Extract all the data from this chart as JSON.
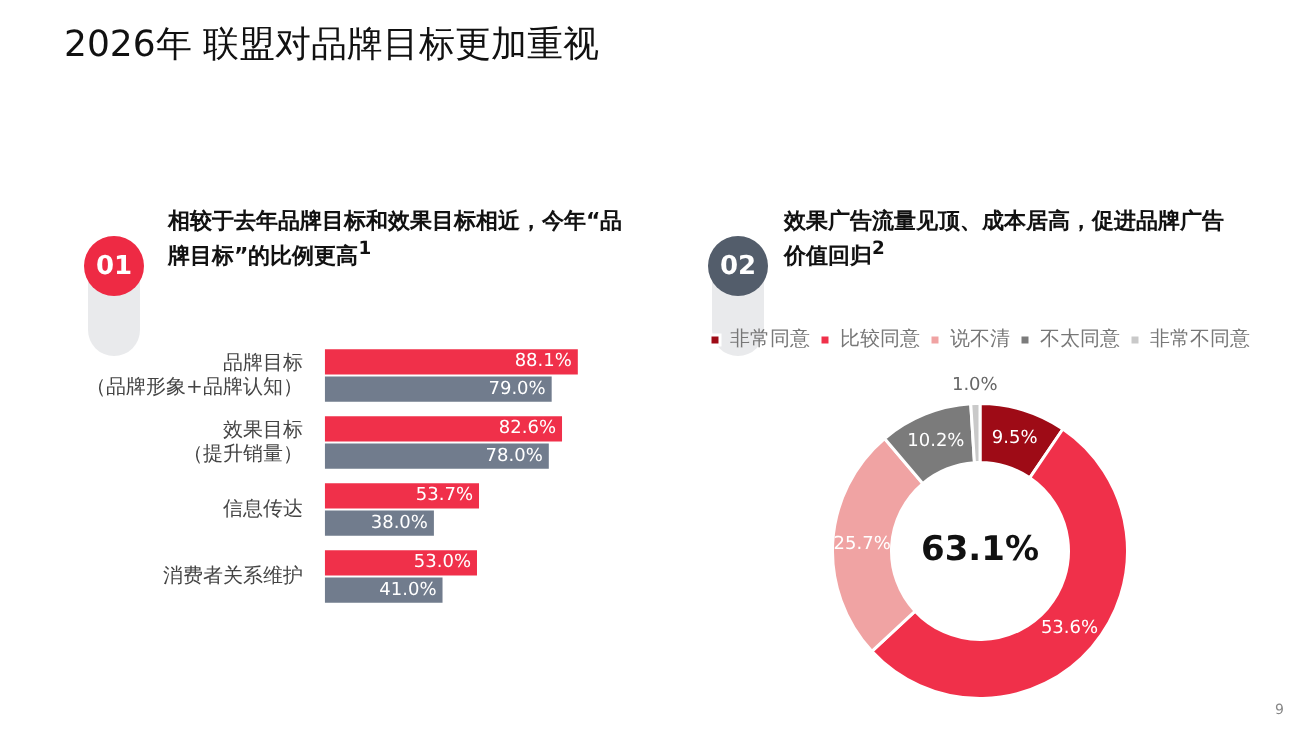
{
  "chart_data": [
    {
      "type": "bar",
      "title": "2026年 联盟对品牌目标更加重视",
      "subtitle": "相较于去年品牌目标和效果目标相近，今年“品牌目标”的比例更高$^{1}$",
      "orientation": "horizontal",
      "categories": [
        "品牌目标（品牌形象+品牌认知）",
        "效果目标（提升销量）",
        "信息传达",
        "消费者关系维护"
      ],
      "series": [
        {
          "color": "#f0304a",
          "values": [
            88.1,
            82.6,
            53.7,
            53.0
          ],
          "value_labels": [
            "88.1%",
            "82.6%",
            "53.7%",
            "53.0%"
          ]
        },
        {
          "color": "#717c8d",
          "values": [
            79.0,
            78.0,
            38.0,
            41.0
          ],
          "value_labels": [
            "79.0%",
            "78.0%",
            "38.0%",
            "41.0%"
          ]
        }
      ],
      "annotations": [
        "01"
      ]
    },
    {
      "type": "donut",
      "title": "效果广告流量见顶、成本居高，促进品牌广告价值回归$^{2}$",
      "categories": [
        "非常同意",
        "比较同意",
        "说不清",
        "不太同意",
        "非常不同意"
      ],
      "values": [
        9.5,
        53.6,
        25.7,
        10.2,
        1.0
      ],
      "colors": [
        "#9e0b16",
        "#f0304a",
        "#f0a3a3",
        "#7b7b7b",
        "#c9c9c9"
      ],
      "value_labels": [
        "9.5%",
        "53.6%",
        "25.7%",
        "10.2%",
        "1.0%"
      ],
      "legend": "top",
      "annotations": [
        "02",
        "63.1%",
        "9"
      ]
    }
  ]
}
